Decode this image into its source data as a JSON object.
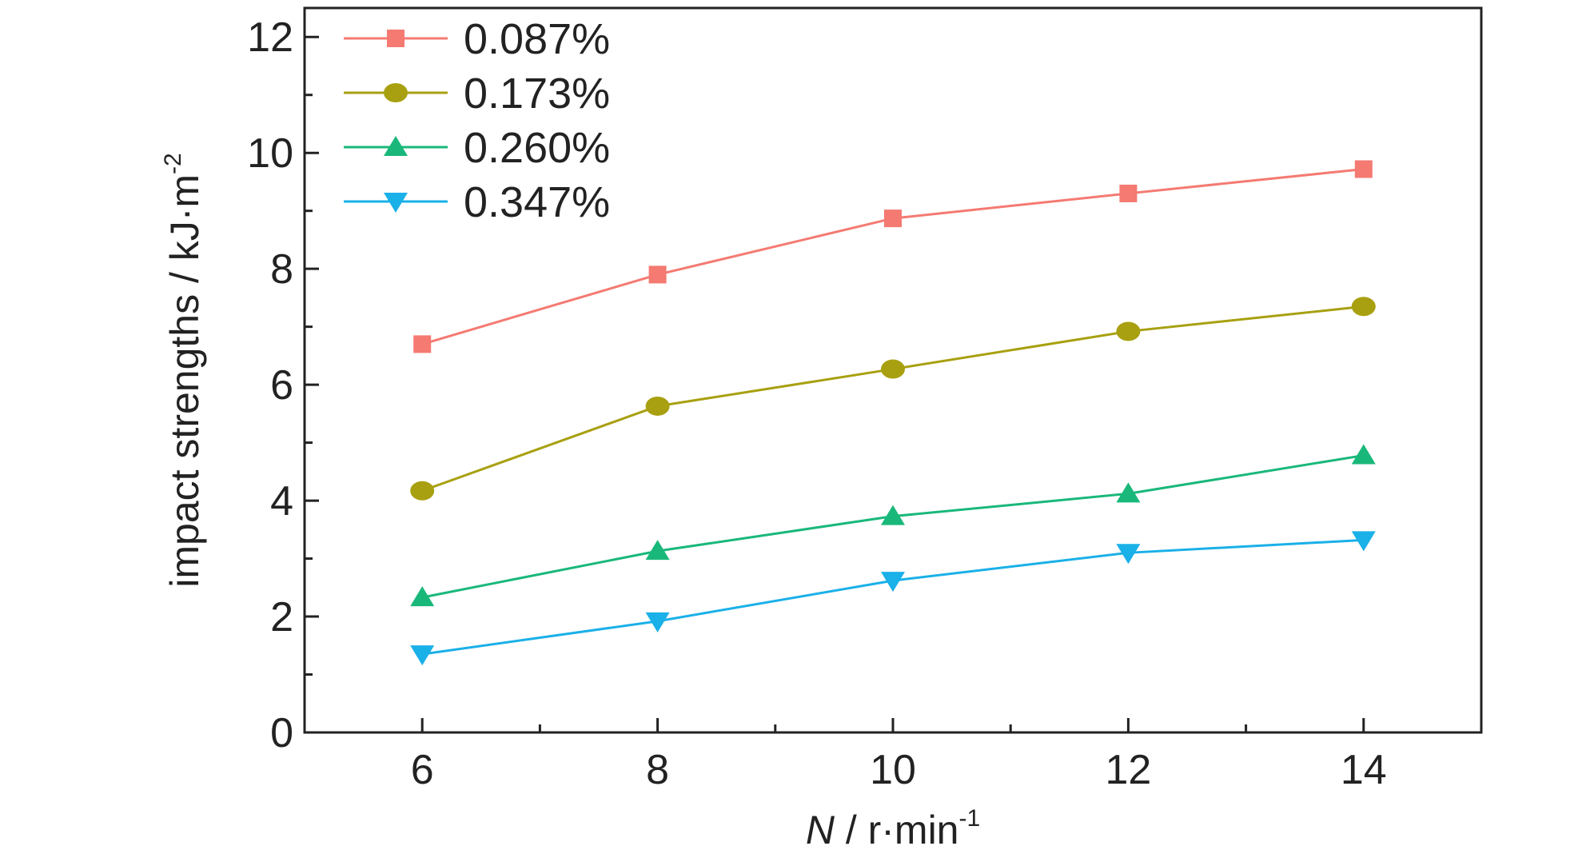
{
  "chart_data": {
    "type": "line",
    "x": [
      6,
      8,
      10,
      12,
      14
    ],
    "xlabel": {
      "italic": "N",
      "unit": " / r·min",
      "sup": "-1"
    },
    "ylabel": {
      "text": "impact strengths / kJ·m",
      "sup": "-2"
    },
    "xlim": [
      5,
      15
    ],
    "ylim": [
      0,
      12.5
    ],
    "xticks": [
      6,
      8,
      10,
      12,
      14
    ],
    "yticks": [
      0,
      2,
      4,
      6,
      8,
      10,
      12
    ],
    "grid": false,
    "legend_position": "top-left",
    "series": [
      {
        "name": "0.087%",
        "marker": "square",
        "color": "#f47a72",
        "values": [
          6.7,
          7.9,
          8.87,
          9.3,
          9.72
        ]
      },
      {
        "name": "0.173%",
        "marker": "circle",
        "color": "#a8a010",
        "values": [
          4.17,
          5.63,
          6.27,
          6.92,
          7.35
        ]
      },
      {
        "name": "0.260%",
        "marker": "triangle-up",
        "color": "#19b87a",
        "values": [
          2.33,
          3.13,
          3.73,
          4.12,
          4.78
        ]
      },
      {
        "name": "0.347%",
        "marker": "triangle-down",
        "color": "#1ab0e8",
        "values": [
          1.35,
          1.92,
          2.62,
          3.1,
          3.32
        ]
      }
    ]
  }
}
